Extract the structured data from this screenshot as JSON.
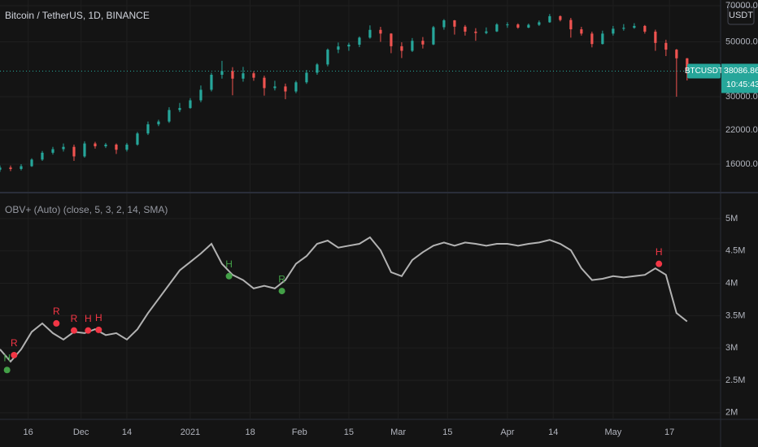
{
  "chart_data": [
    {
      "type": "candlestick",
      "title": "Bitcoin / TetherUS, 1D, BINANCE",
      "log_scale": true,
      "grid": true,
      "up_color": "#26a69a",
      "down_color": "#ef5350",
      "symbol": "BTCUSDT",
      "last_price": 38086.86,
      "countdown": "10:45:43",
      "xlim": [
        -8,
        196.5
      ],
      "ylim": [
        12750,
        71100
      ],
      "yticks": [
        {
          "value": 16000,
          "label": "16000.00"
        },
        {
          "value": 22000,
          "label": "22000.00"
        },
        {
          "value": 30000,
          "label": "30000.00"
        },
        {
          "value": 50000,
          "label": "50000.00"
        },
        {
          "value": 70000,
          "label": "70000.00"
        }
      ],
      "x": [
        -8,
        -5,
        -2,
        1,
        4,
        7,
        10,
        13,
        16,
        19,
        22,
        25,
        28,
        31,
        34,
        37,
        40,
        43,
        46,
        49,
        52,
        55,
        58,
        61,
        64,
        67,
        70,
        73,
        76,
        79,
        82,
        85,
        88,
        91,
        94,
        97,
        100,
        103,
        106,
        109,
        112,
        115,
        118,
        121,
        124,
        127,
        130,
        133,
        136,
        139,
        142,
        145,
        148,
        151,
        154,
        157,
        160,
        163,
        166,
        169,
        172,
        175,
        178,
        181,
        184,
        187
      ],
      "open": [
        15200,
        15500,
        15300,
        15700,
        16700,
        17800,
        18400,
        18800,
        17200,
        19400,
        18900,
        19200,
        18300,
        19200,
        21300,
        23200,
        23800,
        26500,
        27000,
        29000,
        32000,
        36800,
        38100,
        35500,
        37300,
        35800,
        32500,
        33000,
        31500,
        34300,
        37500,
        40500,
        46500,
        47900,
        48700,
        52000,
        55900,
        54000,
        48000,
        46000,
        50500,
        48800,
        57300,
        61100,
        57600,
        55000,
        54300,
        55100,
        58800,
        58800,
        57100,
        58600,
        60000,
        63500,
        61300,
        56200,
        54000,
        49000,
        54000,
        56500,
        57000,
        58000,
        55000,
        49500,
        46500,
        42900
      ],
      "high": [
        15800,
        15800,
        16000,
        16900,
        18100,
        18800,
        19400,
        19200,
        19800,
        19700,
        19500,
        19400,
        19500,
        21600,
        23800,
        24200,
        27200,
        28300,
        29600,
        33300,
        37500,
        41900,
        39500,
        39600,
        38000,
        36500,
        34800,
        33900,
        34800,
        38500,
        41000,
        47000,
        49700,
        49600,
        52600,
        58300,
        57500,
        54200,
        49800,
        51800,
        52300,
        58000,
        61800,
        61300,
        58500,
        56800,
        57200,
        59500,
        60000,
        59400,
        59300,
        61000,
        64800,
        64000,
        62500,
        57500,
        55000,
        55500,
        58000,
        59000,
        59500,
        58500,
        56000,
        51000,
        46800,
        43000
      ],
      "low": [
        14900,
        15000,
        15100,
        15600,
        16500,
        17500,
        18000,
        16500,
        17000,
        18500,
        18600,
        17600,
        18000,
        19000,
        21000,
        22800,
        23500,
        26000,
        26800,
        28500,
        31500,
        35500,
        30400,
        34500,
        34800,
        30300,
        31800,
        29300,
        31000,
        33800,
        36800,
        39800,
        45000,
        46000,
        47600,
        51500,
        50000,
        45000,
        43000,
        45500,
        47000,
        48500,
        56000,
        53500,
        53000,
        50500,
        53700,
        54800,
        57000,
        56500,
        56800,
        58000,
        59700,
        60500,
        52000,
        53000,
        47500,
        48800,
        53000,
        55500,
        56500,
        54000,
        46000,
        43800,
        30000,
        34900
      ],
      "close": [
        15500,
        15300,
        15700,
        16700,
        17800,
        18400,
        18800,
        17200,
        19400,
        18900,
        19200,
        18300,
        19200,
        21300,
        23200,
        23800,
        26500,
        27000,
        29000,
        32000,
        36800,
        38100,
        35500,
        37300,
        35800,
        32500,
        33000,
        31500,
        34300,
        37500,
        40500,
        46500,
        47900,
        48700,
        52000,
        55900,
        54000,
        48000,
        46000,
        50500,
        48800,
        57300,
        61100,
        57600,
        55000,
        54300,
        55100,
        58800,
        58800,
        57100,
        58600,
        60000,
        63500,
        61300,
        56200,
        54000,
        49000,
        54000,
        56500,
        57000,
        58000,
        55000,
        49500,
        46500,
        42900,
        38086.86
      ]
    },
    {
      "type": "line",
      "title": "OBV+ (Auto) (close, 5, 3, 2, 14, SMA)",
      "grid": true,
      "color": "#b2b2b2",
      "xlim": [
        -8,
        196.5
      ],
      "xticks": [
        {
          "value": 0,
          "label": "16"
        },
        {
          "value": 15,
          "label": "Dec"
        },
        {
          "value": 28,
          "label": "14"
        },
        {
          "value": 46,
          "label": "2021"
        },
        {
          "value": 63,
          "label": "18"
        },
        {
          "value": 77,
          "label": "Feb"
        },
        {
          "value": 91,
          "label": "15"
        },
        {
          "value": 105,
          "label": "Mar"
        },
        {
          "value": 119,
          "label": "15"
        },
        {
          "value": 136,
          "label": "Apr"
        },
        {
          "value": 149,
          "label": "14"
        },
        {
          "value": 166,
          "label": "May"
        },
        {
          "value": 182,
          "label": "17"
        }
      ],
      "ylim": [
        1910000,
        5300000
      ],
      "yticks": [
        {
          "value": 2000000,
          "label": "2M"
        },
        {
          "value": 2500000,
          "label": "2.5M"
        },
        {
          "value": 3000000,
          "label": "3M"
        },
        {
          "value": 3500000,
          "label": "3.5M"
        },
        {
          "value": 4000000,
          "label": "4M"
        },
        {
          "value": 4500000,
          "label": "4.5M"
        },
        {
          "value": 5000000,
          "label": "5M"
        }
      ],
      "x": [
        -8,
        -5,
        -2,
        1,
        4,
        7,
        10,
        13,
        16,
        19,
        22,
        25,
        28,
        31,
        34,
        37,
        40,
        43,
        46,
        49,
        52,
        55,
        58,
        61,
        64,
        67,
        70,
        73,
        76,
        79,
        82,
        85,
        88,
        91,
        94,
        97,
        100,
        103,
        106,
        109,
        112,
        115,
        118,
        121,
        124,
        127,
        130,
        133,
        136,
        139,
        142,
        145,
        148,
        151,
        154,
        157,
        160,
        163,
        166,
        169,
        172,
        175,
        178,
        181,
        184,
        187
      ],
      "values": [
        2980000,
        2790000,
        2980000,
        3250000,
        3380000,
        3230000,
        3130000,
        3250000,
        3230000,
        3290000,
        3200000,
        3230000,
        3130000,
        3290000,
        3540000,
        3760000,
        3980000,
        4200000,
        4330000,
        4460000,
        4610000,
        4300000,
        4130000,
        4050000,
        3920000,
        3960000,
        3920000,
        4050000,
        4300000,
        4420000,
        4610000,
        4660000,
        4550000,
        4580000,
        4610000,
        4710000,
        4510000,
        4170000,
        4110000,
        4360000,
        4480000,
        4580000,
        4630000,
        4580000,
        4630000,
        4610000,
        4580000,
        4610000,
        4610000,
        4580000,
        4610000,
        4630000,
        4670000,
        4610000,
        4510000,
        4230000,
        4050000,
        4070000,
        4110000,
        4090000,
        4110000,
        4130000,
        4230000,
        4130000,
        3540000,
        3410000
      ],
      "annotations": [
        {
          "text": "H",
          "x": -6,
          "y": 2660000,
          "color": "#43a047"
        },
        {
          "text": "R",
          "x": -4,
          "y": 2890000,
          "color": "#f23645"
        },
        {
          "text": "R",
          "x": 8,
          "y": 3380000,
          "color": "#f23645"
        },
        {
          "text": "R",
          "x": 13,
          "y": 3270000,
          "color": "#f23645"
        },
        {
          "text": "H",
          "x": 17,
          "y": 3270000,
          "color": "#f23645"
        },
        {
          "text": "H",
          "x": 20,
          "y": 3280000,
          "color": "#f23645"
        },
        {
          "text": "H",
          "x": 57,
          "y": 4110000,
          "color": "#43a047"
        },
        {
          "text": "R",
          "x": 72,
          "y": 3880000,
          "color": "#43a047"
        },
        {
          "text": "H",
          "x": 179,
          "y": 4300000,
          "color": "#f23645"
        }
      ]
    }
  ],
  "currency_button": "USDT"
}
